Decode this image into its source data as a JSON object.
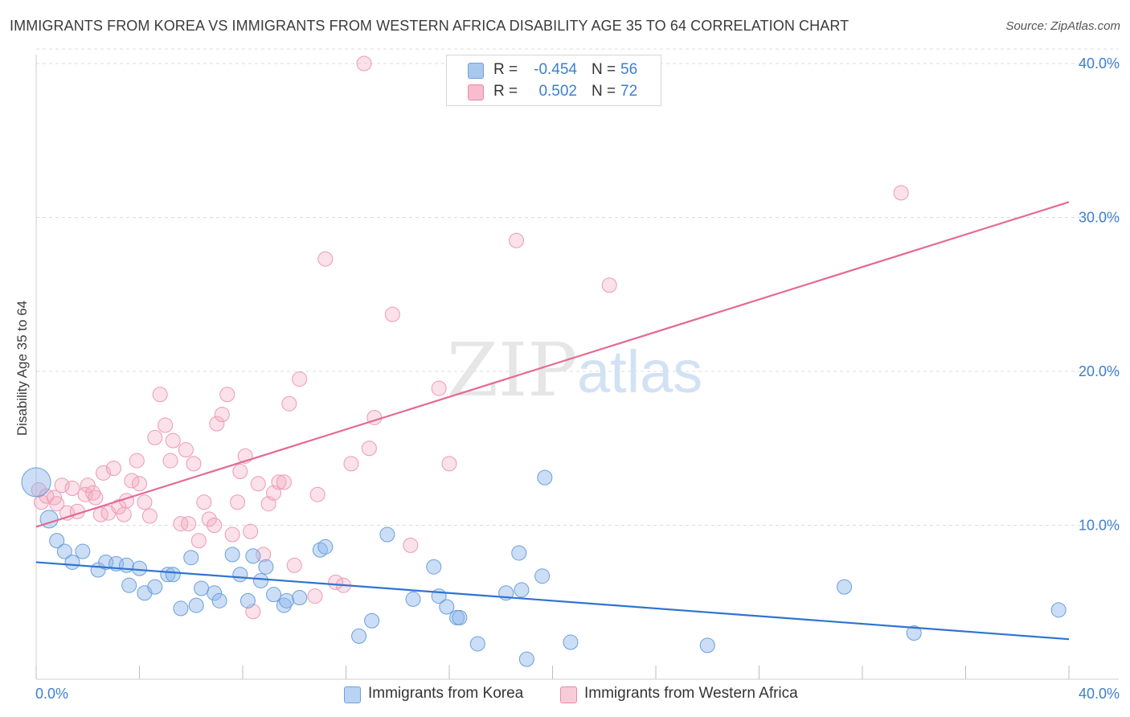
{
  "title": "IMMIGRANTS FROM KOREA VS IMMIGRANTS FROM WESTERN AFRICA DISABILITY AGE 35 TO 64 CORRELATION CHART",
  "source": "Source: ZipAtlas.com",
  "watermark": {
    "zip": "ZIP",
    "atlas": "atlas"
  },
  "legend": {
    "rows": [
      {
        "r_label": "R =",
        "r_value": "-0.454",
        "n_label": "N =",
        "n_value": "56",
        "color": "#a8c8f0",
        "border": "#6fa0dc"
      },
      {
        "r_label": "R =",
        "r_value": "0.502",
        "n_label": "N =",
        "n_value": "72",
        "color": "#f7bccd",
        "border": "#e88aa8"
      }
    ]
  },
  "bottom_legend": {
    "korea": "Immigrants from Korea",
    "wafrica": "Immigrants from Western Africa"
  },
  "colors": {
    "korea_fill": "rgba(140,182,235,0.45)",
    "korea_stroke": "#6a9fdc",
    "korea_line": "#2f74d0",
    "wafrica_fill": "rgba(244,170,192,0.35)",
    "wafrica_stroke": "#ec9ab4",
    "wafrica_line": "#e46a93",
    "tick_text": "#3d7fd0",
    "grid": "#dcdcdc"
  },
  "chart_data": {
    "type": "scatter",
    "xlabel": "",
    "ylabel": "Disability Age 35 to 64",
    "xlim": [
      0,
      40
    ],
    "ylim": [
      0,
      41
    ],
    "x_tick_labels": [
      "0.0%",
      "40.0%"
    ],
    "y_ticks": [
      10,
      20,
      30,
      40
    ],
    "y_tick_labels": [
      "10.0%",
      "20.0%",
      "30.0%",
      "40.0%"
    ],
    "grid": true,
    "series": [
      {
        "name": "Immigrants from Korea",
        "trend": {
          "x": [
            0,
            40
          ],
          "y": [
            7.6,
            2.6
          ]
        },
        "points": [
          [
            0.0,
            12.8,
            18
          ],
          [
            0.5,
            10.4,
            11
          ],
          [
            0.8,
            9.0,
            9
          ],
          [
            1.1,
            8.3,
            9
          ],
          [
            1.4,
            7.6,
            9
          ],
          [
            1.8,
            8.3,
            9
          ],
          [
            2.4,
            7.1,
            9
          ],
          [
            2.7,
            7.6,
            9
          ],
          [
            3.1,
            7.5,
            9
          ],
          [
            3.5,
            7.4,
            9
          ],
          [
            3.6,
            6.1,
            9
          ],
          [
            4.0,
            7.2,
            9
          ],
          [
            4.2,
            5.6,
            9
          ],
          [
            4.6,
            6.0,
            9
          ],
          [
            5.1,
            6.8,
            9
          ],
          [
            5.3,
            6.8,
            9
          ],
          [
            5.6,
            4.6,
            9
          ],
          [
            6.0,
            7.9,
            9
          ],
          [
            6.2,
            4.8,
            9
          ],
          [
            6.4,
            5.9,
            9
          ],
          [
            6.9,
            5.6,
            9
          ],
          [
            7.1,
            5.1,
            9
          ],
          [
            7.6,
            8.1,
            9
          ],
          [
            7.9,
            6.8,
            9
          ],
          [
            8.2,
            5.1,
            9
          ],
          [
            8.4,
            8.0,
            9
          ],
          [
            8.7,
            6.4,
            9
          ],
          [
            8.9,
            7.3,
            9
          ],
          [
            9.2,
            5.5,
            9
          ],
          [
            9.6,
            4.8,
            9
          ],
          [
            9.7,
            5.1,
            9
          ],
          [
            10.2,
            5.3,
            9
          ],
          [
            11.0,
            8.4,
            9
          ],
          [
            11.2,
            8.6,
            9
          ],
          [
            12.5,
            2.8,
            9
          ],
          [
            13.0,
            3.8,
            9
          ],
          [
            13.6,
            9.4,
            9
          ],
          [
            14.6,
            5.2,
            9
          ],
          [
            15.4,
            7.3,
            9
          ],
          [
            15.6,
            5.4,
            9
          ],
          [
            15.9,
            4.7,
            9
          ],
          [
            16.3,
            4.0,
            9
          ],
          [
            16.4,
            4.0,
            9
          ],
          [
            17.1,
            2.3,
            9
          ],
          [
            18.2,
            5.6,
            9
          ],
          [
            18.7,
            8.2,
            9
          ],
          [
            18.8,
            5.8,
            9
          ],
          [
            19.0,
            1.3,
            9
          ],
          [
            19.6,
            6.7,
            9
          ],
          [
            19.7,
            13.1,
            9
          ],
          [
            20.7,
            2.4,
            9
          ],
          [
            26.0,
            2.2,
            9
          ],
          [
            31.3,
            6.0,
            9
          ],
          [
            34.0,
            3.0,
            9
          ],
          [
            39.6,
            4.5,
            9
          ],
          [
            17.3,
            2.5,
            0
          ]
        ]
      },
      {
        "name": "Immigrants from Western Africa",
        "trend": {
          "x": [
            0,
            40
          ],
          "y": [
            9.9,
            31.0
          ]
        },
        "points": [
          [
            0.1,
            12.3,
            9
          ],
          [
            0.2,
            11.5,
            9
          ],
          [
            0.4,
            11.9,
            9
          ],
          [
            0.7,
            11.8,
            9
          ],
          [
            0.8,
            11.4,
            9
          ],
          [
            1.0,
            12.6,
            9
          ],
          [
            1.2,
            10.8,
            9
          ],
          [
            1.4,
            12.4,
            9
          ],
          [
            1.6,
            10.9,
            9
          ],
          [
            1.9,
            12.0,
            9
          ],
          [
            2.0,
            12.6,
            9
          ],
          [
            2.2,
            12.1,
            9
          ],
          [
            2.3,
            11.8,
            9
          ],
          [
            2.5,
            10.7,
            9
          ],
          [
            2.6,
            13.4,
            9
          ],
          [
            2.8,
            10.8,
            9
          ],
          [
            3.0,
            13.7,
            9
          ],
          [
            3.2,
            11.2,
            9
          ],
          [
            3.4,
            10.7,
            9
          ],
          [
            3.5,
            11.6,
            9
          ],
          [
            3.7,
            12.9,
            9
          ],
          [
            3.9,
            14.2,
            9
          ],
          [
            4.0,
            12.7,
            9
          ],
          [
            4.2,
            11.5,
            9
          ],
          [
            4.4,
            10.6,
            9
          ],
          [
            4.6,
            15.7,
            9
          ],
          [
            4.8,
            18.5,
            9
          ],
          [
            5.0,
            16.5,
            9
          ],
          [
            5.2,
            14.2,
            9
          ],
          [
            5.3,
            15.5,
            9
          ],
          [
            5.6,
            10.1,
            9
          ],
          [
            5.8,
            14.9,
            9
          ],
          [
            5.9,
            10.1,
            9
          ],
          [
            6.1,
            14.0,
            9
          ],
          [
            6.3,
            9.0,
            9
          ],
          [
            6.5,
            11.5,
            9
          ],
          [
            6.7,
            10.4,
            9
          ],
          [
            6.9,
            10.0,
            9
          ],
          [
            7.0,
            16.6,
            9
          ],
          [
            7.2,
            17.2,
            9
          ],
          [
            7.4,
            18.5,
            9
          ],
          [
            7.6,
            9.4,
            9
          ],
          [
            7.8,
            11.5,
            9
          ],
          [
            7.9,
            13.5,
            9
          ],
          [
            8.1,
            14.5,
            9
          ],
          [
            8.3,
            9.6,
            9
          ],
          [
            8.4,
            4.4,
            9
          ],
          [
            8.6,
            12.7,
            9
          ],
          [
            8.8,
            8.1,
            9
          ],
          [
            9.0,
            11.4,
            9
          ],
          [
            9.2,
            12.1,
            9
          ],
          [
            9.4,
            12.8,
            9
          ],
          [
            9.6,
            12.8,
            9
          ],
          [
            9.8,
            17.9,
            9
          ],
          [
            10.0,
            7.4,
            9
          ],
          [
            10.2,
            19.5,
            9
          ],
          [
            10.8,
            5.4,
            9
          ],
          [
            10.9,
            12.0,
            9
          ],
          [
            11.2,
            27.3,
            9
          ],
          [
            11.6,
            6.3,
            9
          ],
          [
            11.9,
            6.1,
            9
          ],
          [
            12.2,
            14.0,
            9
          ],
          [
            12.7,
            40.0,
            9
          ],
          [
            12.9,
            15.0,
            9
          ],
          [
            13.1,
            17.0,
            9
          ],
          [
            13.8,
            23.7,
            9
          ],
          [
            14.5,
            8.7,
            9
          ],
          [
            15.6,
            18.9,
            9
          ],
          [
            16.0,
            14.0,
            9
          ],
          [
            18.6,
            28.5,
            9
          ],
          [
            22.2,
            25.6,
            9
          ],
          [
            33.5,
            31.6,
            9
          ]
        ]
      }
    ]
  }
}
